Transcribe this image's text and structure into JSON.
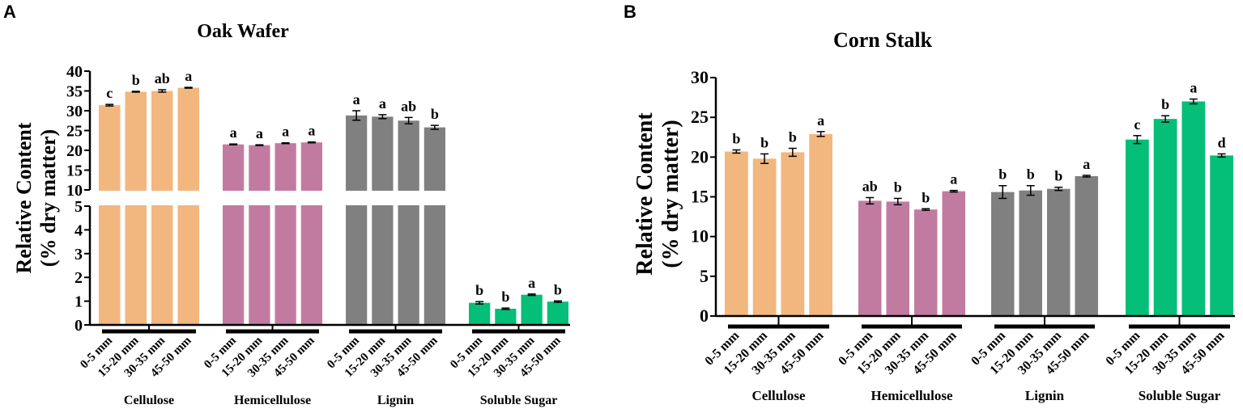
{
  "colors": {
    "Cellulose": "#f2b77e",
    "Hemicellulose": "#c27ba0",
    "Lignin": "#808080",
    "Soluble Sugar": "#05be78"
  },
  "chart_data": [
    {
      "panel": "A",
      "type": "bar",
      "title": "Oak Wafer",
      "ylabel": [
        "Relative Content",
        "(% dry matter)"
      ],
      "ylim": [
        0,
        40
      ],
      "axis_break": [
        5,
        10
      ],
      "yticks": [
        0,
        1,
        2,
        3,
        4,
        5,
        10,
        15,
        20,
        25,
        30,
        35,
        40
      ],
      "sizes": [
        "0-5 mm",
        "15-20 mm",
        "30-35 mm",
        "45-50 mm"
      ],
      "groups": [
        {
          "name": "Cellulose",
          "values": [
            31.4,
            34.8,
            35.0,
            35.8
          ],
          "errors": [
            0.2,
            0.1,
            0.3,
            0.1
          ],
          "letters": [
            "c",
            "b",
            "ab",
            "a"
          ]
        },
        {
          "name": "Hemicellulose",
          "values": [
            21.5,
            21.3,
            21.8,
            22.0
          ],
          "errors": [
            0.1,
            0.1,
            0.1,
            0.1
          ],
          "letters": [
            "a",
            "a",
            "a",
            "a"
          ]
        },
        {
          "name": "Lignin",
          "values": [
            28.8,
            28.5,
            27.5,
            25.8
          ],
          "errors": [
            1.2,
            0.5,
            0.8,
            0.5
          ],
          "letters": [
            "a",
            "a",
            "ab",
            "b"
          ]
        },
        {
          "name": "Soluble Sugar",
          "values": [
            0.93,
            0.68,
            1.27,
            0.98
          ],
          "errors": [
            0.05,
            0.03,
            0.03,
            0.03
          ],
          "letters": [
            "b",
            "b",
            "a",
            "b"
          ]
        }
      ]
    },
    {
      "panel": "B",
      "type": "bar",
      "title": "Corn Stalk",
      "ylabel": [
        "Relative Content",
        "(% dry matter)"
      ],
      "ylim": [
        0,
        30
      ],
      "yticks": [
        0,
        5,
        10,
        15,
        20,
        25,
        30
      ],
      "sizes": [
        "0-5 mm",
        "15-20 mm",
        "30-35 mm",
        "45-50 mm"
      ],
      "groups": [
        {
          "name": "Cellulose",
          "values": [
            20.7,
            19.8,
            20.6,
            22.9
          ],
          "errors": [
            0.2,
            0.6,
            0.5,
            0.3
          ],
          "letters": [
            "b",
            "b",
            "b",
            "a"
          ]
        },
        {
          "name": "Hemicellulose",
          "values": [
            14.5,
            14.4,
            13.4,
            15.7
          ],
          "errors": [
            0.4,
            0.4,
            0.1,
            0.1
          ],
          "letters": [
            "ab",
            "b",
            "b",
            "a"
          ]
        },
        {
          "name": "Lignin",
          "values": [
            15.6,
            15.8,
            16.0,
            17.6
          ],
          "errors": [
            0.8,
            0.6,
            0.2,
            0.1
          ],
          "letters": [
            "b",
            "b",
            "b",
            "a"
          ]
        },
        {
          "name": "Soluble Sugar",
          "values": [
            22.2,
            24.8,
            27.0,
            20.2
          ],
          "errors": [
            0.5,
            0.4,
            0.3,
            0.2
          ],
          "letters": [
            "c",
            "b",
            "a",
            "d"
          ]
        }
      ]
    }
  ]
}
